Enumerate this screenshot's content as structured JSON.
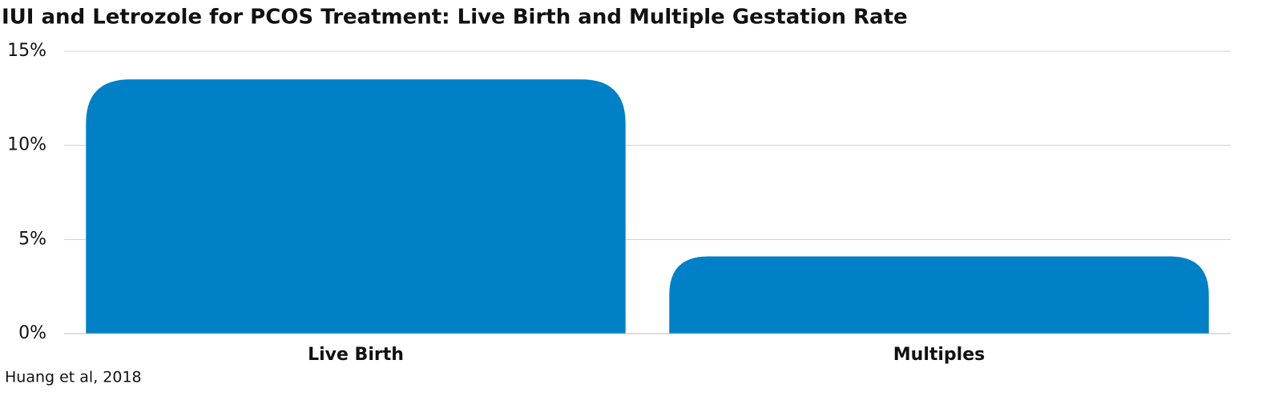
{
  "chart_data": {
    "type": "bar",
    "title": "IUI and Letrozole for PCOS Treatment: Live Birth and Multiple Gestation Rate",
    "categories": [
      "Live Birth",
      "Multiples"
    ],
    "values": [
      13.5,
      4.1
    ],
    "color": "#0080c6",
    "ylim": [
      0,
      15
    ],
    "yticks": [
      {
        "value": 0,
        "label": "0%"
      },
      {
        "value": 5,
        "label": "5%"
      },
      {
        "value": 10,
        "label": "10%"
      },
      {
        "value": 15,
        "label": "15%"
      }
    ],
    "grid": true,
    "source": "Huang et al, 2018"
  }
}
